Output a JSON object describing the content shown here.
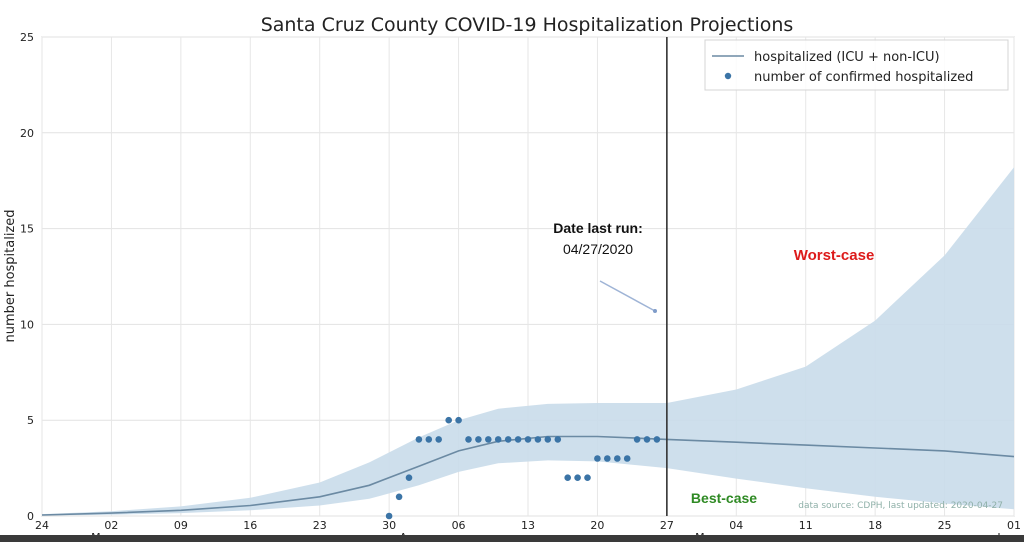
{
  "chart_data": {
    "type": "line",
    "title": "Santa Cruz County COVID-19 Hospitalization Projections",
    "ylabel": "number hospitalized",
    "xlabel": "",
    "ylim": [
      0,
      25
    ],
    "xlim": [
      "2020-02-24",
      "2020-06-01"
    ],
    "yticks": [
      0,
      5,
      10,
      15,
      20,
      25
    ],
    "xticks": [
      {
        "date": "2020-02-24",
        "label": "24"
      },
      {
        "date": "2020-03-02",
        "label": "02"
      },
      {
        "date": "2020-03-09",
        "label": "09"
      },
      {
        "date": "2020-03-16",
        "label": "16"
      },
      {
        "date": "2020-03-23",
        "label": "23"
      },
      {
        "date": "2020-03-30",
        "label": "30"
      },
      {
        "date": "2020-04-06",
        "label": "06"
      },
      {
        "date": "2020-04-13",
        "label": "13"
      },
      {
        "date": "2020-04-20",
        "label": "20"
      },
      {
        "date": "2020-04-27",
        "label": "27"
      },
      {
        "date": "2020-05-04",
        "label": "04"
      },
      {
        "date": "2020-05-11",
        "label": "11"
      },
      {
        "date": "2020-05-18",
        "label": "18"
      },
      {
        "date": "2020-05-25",
        "label": "25"
      },
      {
        "date": "2020-06-01",
        "label": "01"
      }
    ],
    "month_labels": [
      {
        "date": "2020-03-01",
        "label": "Mar"
      },
      {
        "date": "2020-04-01",
        "label": "Apr"
      },
      {
        "date": "2020-05-01",
        "label": "May"
      },
      {
        "date": "2020-06-01",
        "label": "Jun"
      }
    ],
    "grid": true,
    "legend_position": "top-right",
    "colors": {
      "line": "#6b8aa3",
      "band": "#c9dcea",
      "points": "#3b74a6",
      "vline": "#333333"
    },
    "series": [
      {
        "name": "hospitalized (ICU + non-ICU)",
        "kind": "line",
        "points": [
          {
            "date": "2020-02-24",
            "y": 0.05
          },
          {
            "date": "2020-03-02",
            "y": 0.15
          },
          {
            "date": "2020-03-09",
            "y": 0.3
          },
          {
            "date": "2020-03-16",
            "y": 0.55
          },
          {
            "date": "2020-03-23",
            "y": 1.0
          },
          {
            "date": "2020-03-28",
            "y": 1.6
          },
          {
            "date": "2020-04-02",
            "y": 2.6
          },
          {
            "date": "2020-04-06",
            "y": 3.4
          },
          {
            "date": "2020-04-10",
            "y": 3.9
          },
          {
            "date": "2020-04-15",
            "y": 4.15
          },
          {
            "date": "2020-04-20",
            "y": 4.15
          },
          {
            "date": "2020-04-27",
            "y": 4.0
          },
          {
            "date": "2020-05-04",
            "y": 3.85
          },
          {
            "date": "2020-05-11",
            "y": 3.7
          },
          {
            "date": "2020-05-18",
            "y": 3.55
          },
          {
            "date": "2020-05-25",
            "y": 3.4
          },
          {
            "date": "2020-06-01",
            "y": 3.1
          }
        ]
      },
      {
        "name": "number of confirmed hospitalized",
        "kind": "scatter",
        "points": [
          {
            "date": "2020-03-30",
            "y": 0
          },
          {
            "date": "2020-03-31",
            "y": 1
          },
          {
            "date": "2020-04-01",
            "y": 2
          },
          {
            "date": "2020-04-02",
            "y": 4
          },
          {
            "date": "2020-04-03",
            "y": 4
          },
          {
            "date": "2020-04-04",
            "y": 4
          },
          {
            "date": "2020-04-05",
            "y": 5
          },
          {
            "date": "2020-04-06",
            "y": 5
          },
          {
            "date": "2020-04-07",
            "y": 4
          },
          {
            "date": "2020-04-08",
            "y": 4
          },
          {
            "date": "2020-04-09",
            "y": 4
          },
          {
            "date": "2020-04-10",
            "y": 4
          },
          {
            "date": "2020-04-11",
            "y": 4
          },
          {
            "date": "2020-04-12",
            "y": 4
          },
          {
            "date": "2020-04-13",
            "y": 4
          },
          {
            "date": "2020-04-14",
            "y": 4
          },
          {
            "date": "2020-04-15",
            "y": 4
          },
          {
            "date": "2020-04-16",
            "y": 4
          },
          {
            "date": "2020-04-17",
            "y": 2
          },
          {
            "date": "2020-04-18",
            "y": 2
          },
          {
            "date": "2020-04-19",
            "y": 2
          },
          {
            "date": "2020-04-20",
            "y": 3
          },
          {
            "date": "2020-04-21",
            "y": 3
          },
          {
            "date": "2020-04-22",
            "y": 3
          },
          {
            "date": "2020-04-23",
            "y": 3
          },
          {
            "date": "2020-04-24",
            "y": 4
          },
          {
            "date": "2020-04-25",
            "y": 4
          },
          {
            "date": "2020-04-26",
            "y": 4
          }
        ]
      }
    ],
    "band": {
      "points": [
        {
          "date": "2020-02-24",
          "low": 0.02,
          "high": 0.1
        },
        {
          "date": "2020-03-02",
          "low": 0.07,
          "high": 0.25
        },
        {
          "date": "2020-03-09",
          "low": 0.15,
          "high": 0.5
        },
        {
          "date": "2020-03-16",
          "low": 0.3,
          "high": 0.95
        },
        {
          "date": "2020-03-23",
          "low": 0.55,
          "high": 1.75
        },
        {
          "date": "2020-03-28",
          "low": 0.9,
          "high": 2.8
        },
        {
          "date": "2020-04-02",
          "low": 1.6,
          "high": 4.1
        },
        {
          "date": "2020-04-06",
          "low": 2.3,
          "high": 5.0
        },
        {
          "date": "2020-04-10",
          "low": 2.75,
          "high": 5.6
        },
        {
          "date": "2020-04-15",
          "low": 2.9,
          "high": 5.85
        },
        {
          "date": "2020-04-20",
          "low": 2.85,
          "high": 5.9
        },
        {
          "date": "2020-04-27",
          "low": 2.5,
          "high": 5.9
        },
        {
          "date": "2020-05-04",
          "low": 1.95,
          "high": 6.6
        },
        {
          "date": "2020-05-11",
          "low": 1.45,
          "high": 7.8
        },
        {
          "date": "2020-05-18",
          "low": 1.0,
          "high": 10.2
        },
        {
          "date": "2020-05-25",
          "low": 0.65,
          "high": 13.6
        },
        {
          "date": "2020-06-01",
          "low": 0.35,
          "high": 18.2
        }
      ]
    },
    "vline_date": "2020-04-27",
    "annotations": {
      "date_last_run_label": "Date last run:",
      "date_last_run_value": "04/27/2020",
      "worst_case": "Worst-case",
      "best_case": "Best-case",
      "source": "data source: CDPH, last updated: 2020-04-27"
    }
  }
}
